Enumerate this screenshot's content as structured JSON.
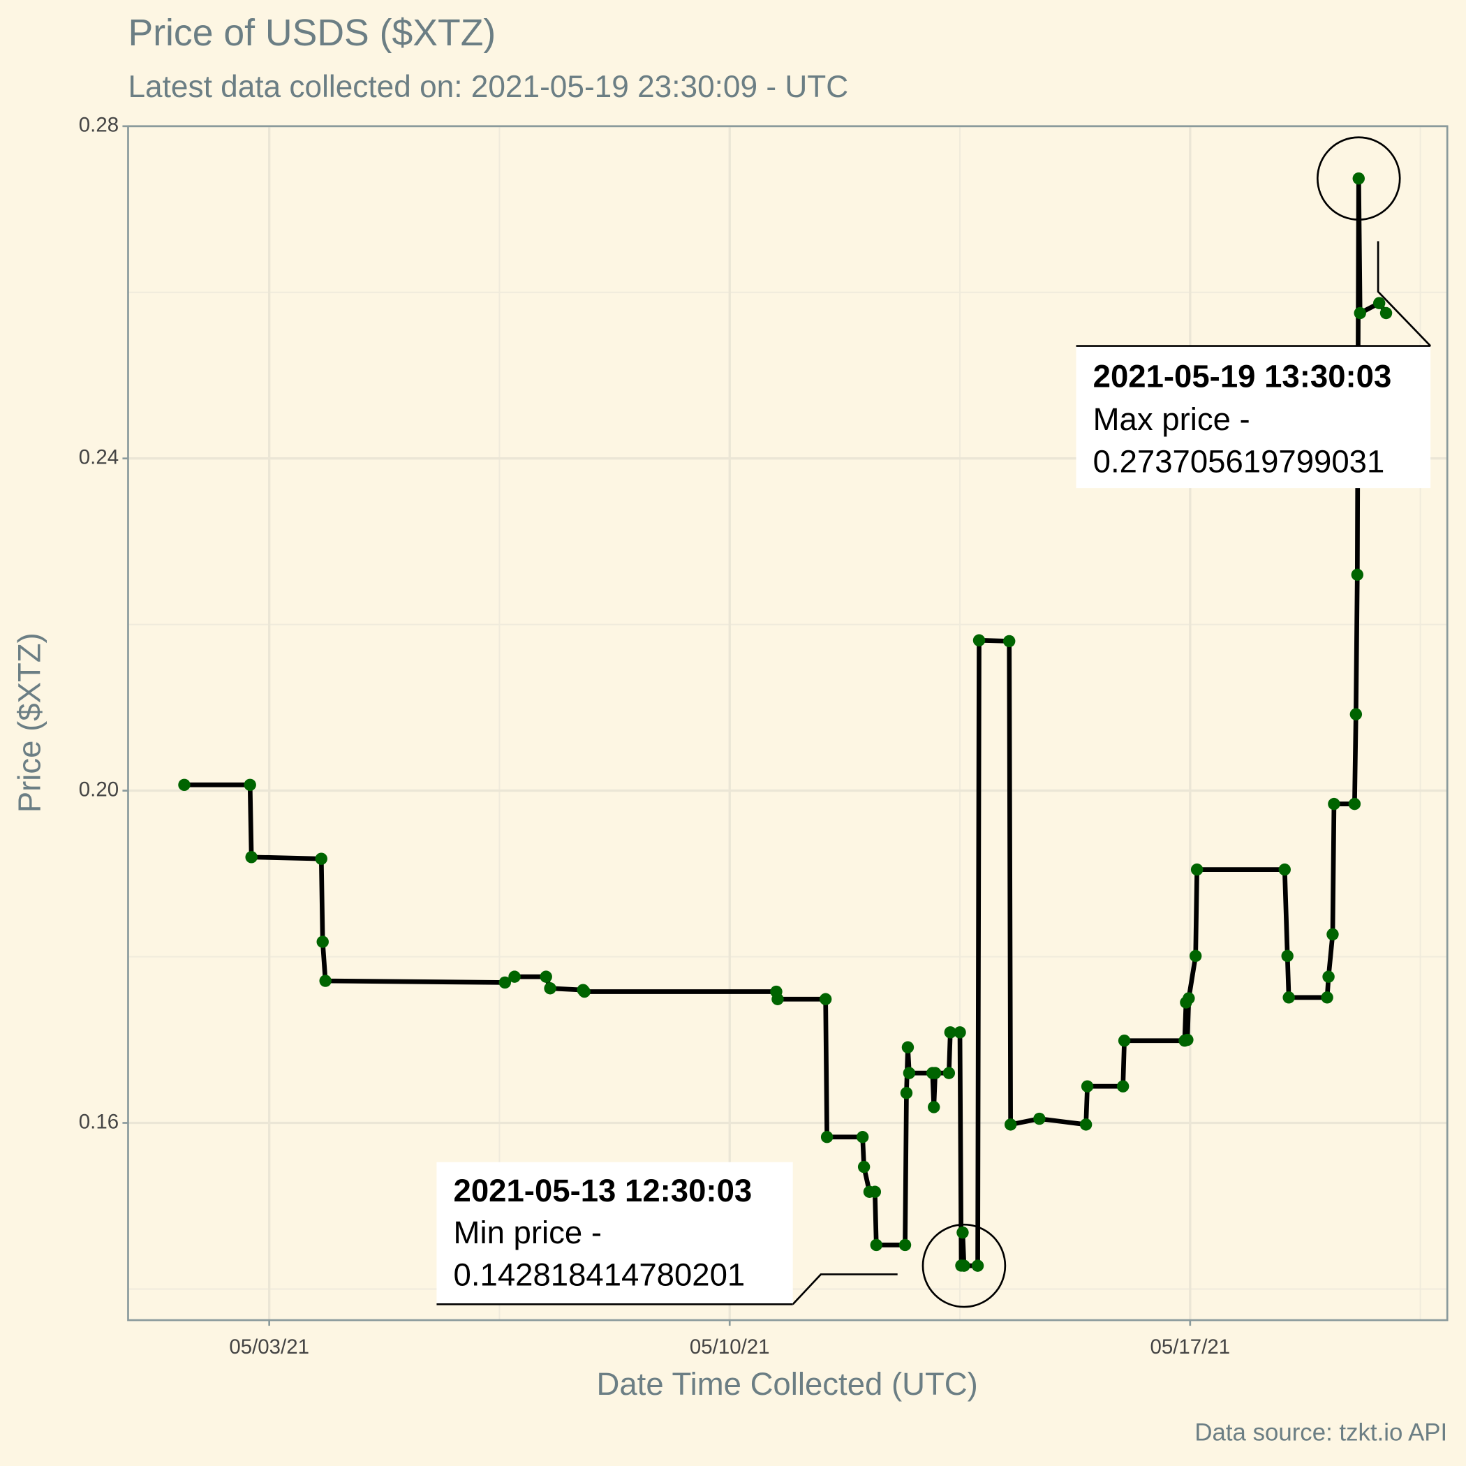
{
  "chart_data": {
    "type": "line",
    "title": "Price of USDS ($XTZ)",
    "subtitle": "Latest data collected on: 2021-05-19 23:30:09  - UTC",
    "x_label": "Date Time Collected (UTC)",
    "y_label": "Price ($XTZ)",
    "caption": "Data source: tzkt.io API",
    "xlim": [
      "2021-04-30 20:30",
      "2021-05-20 21:50"
    ],
    "xticks": [
      {
        "value": "2021-05-03",
        "label": "05/03/21"
      },
      {
        "value": "2021-05-10",
        "label": "05/10/21"
      },
      {
        "value": "2021-05-17",
        "label": "05/17/21"
      }
    ],
    "ylim": [
      0.13625,
      0.28
    ],
    "yticks": [
      0.16,
      {
        "value": 0.2,
        "label": "0.20"
      },
      0.24,
      0.28
    ],
    "grid": true,
    "x": [
      "2021-05-01 17:00",
      "2021-05-02 17:00",
      "2021-05-02 17:30",
      "2021-05-03 19:00",
      "2021-05-03 19:30",
      "2021-05-03 20:30",
      "2021-05-06 14:00",
      "2021-05-06 17:30",
      "2021-05-07 05:00",
      "2021-05-07 06:30",
      "2021-05-07 18:30",
      "2021-05-07 19:00",
      "2021-05-10 17:00",
      "2021-05-10 17:30",
      "2021-05-11 11:00",
      "2021-05-11 11:30",
      "2021-05-12 00:30",
      "2021-05-12 01:00",
      "2021-05-12 03:00",
      "2021-05-12 05:00",
      "2021-05-12 05:30",
      "2021-05-12 16:00",
      "2021-05-12 16:30",
      "2021-05-12 17:00",
      "2021-05-12 17:30",
      "2021-05-13 02:00",
      "2021-05-13 02:30",
      "2021-05-13 03:00",
      "2021-05-13 08:00",
      "2021-05-13 08:30",
      "2021-05-13 12:00",
      "2021-05-13 12:30",
      "2021-05-13 13:00",
      "2021-05-13 13:30",
      "2021-05-13 18:30",
      "2021-05-13 19:00",
      "2021-05-14 06:00",
      "2021-05-14 06:30",
      "2021-05-14 17:00",
      "2021-05-15 10:00",
      "2021-05-15 10:30",
      "2021-05-15 23:30",
      "2021-05-16 00:00",
      "2021-05-16 22:00",
      "2021-05-16 22:30",
      "2021-05-16 23:00",
      "2021-05-16 23:30",
      "2021-05-17 02:00",
      "2021-05-17 02:30",
      "2021-05-18 10:30",
      "2021-05-18 11:30",
      "2021-05-18 12:00",
      "2021-05-19 02:00",
      "2021-05-19 02:30",
      "2021-05-19 04:00",
      "2021-05-19 04:30",
      "2021-05-19 12:00",
      "2021-05-19 12:30",
      "2021-05-19 13:00",
      "2021-05-19 13:30",
      "2021-05-19 14:00",
      "2021-05-19 21:00",
      "2021-05-19 23:30"
    ],
    "series": [
      {
        "line_color": "#000000",
        "color": "#006400",
        "values": [
          0.2007,
          0.2007,
          0.192,
          0.1918,
          0.1818,
          0.1771,
          0.1769,
          0.1776,
          0.1776,
          0.1762,
          0.176,
          0.1758,
          0.1758,
          0.1749,
          0.1749,
          0.1583,
          0.1583,
          0.1547,
          0.1517,
          0.1517,
          0.1453,
          0.1453,
          0.1636,
          0.1691,
          0.166,
          0.166,
          0.1619,
          0.166,
          0.166,
          0.1709,
          0.1709,
          0.142818414780201,
          0.1468,
          0.1428,
          0.1428,
          0.2181,
          0.218,
          0.1598,
          0.1605,
          0.1598,
          0.1644,
          0.1644,
          0.1699,
          0.1699,
          0.1745,
          0.17,
          0.175,
          0.1801,
          0.1905,
          0.1905,
          0.1801,
          0.1751,
          0.1751,
          0.1776,
          0.1827,
          0.1984,
          0.1984,
          0.2092,
          0.226,
          0.273705619799031,
          0.2575,
          0.2587,
          0.2575
        ]
      }
    ],
    "annotations": [
      {
        "title": "2021-05-13 12:30:03",
        "lines": [
          "Min price -",
          "0.142818414780201"
        ]
      },
      {
        "title": "2021-05-19 13:30:03",
        "lines": [
          "Max price -",
          "0.273705619799031"
        ]
      }
    ]
  }
}
